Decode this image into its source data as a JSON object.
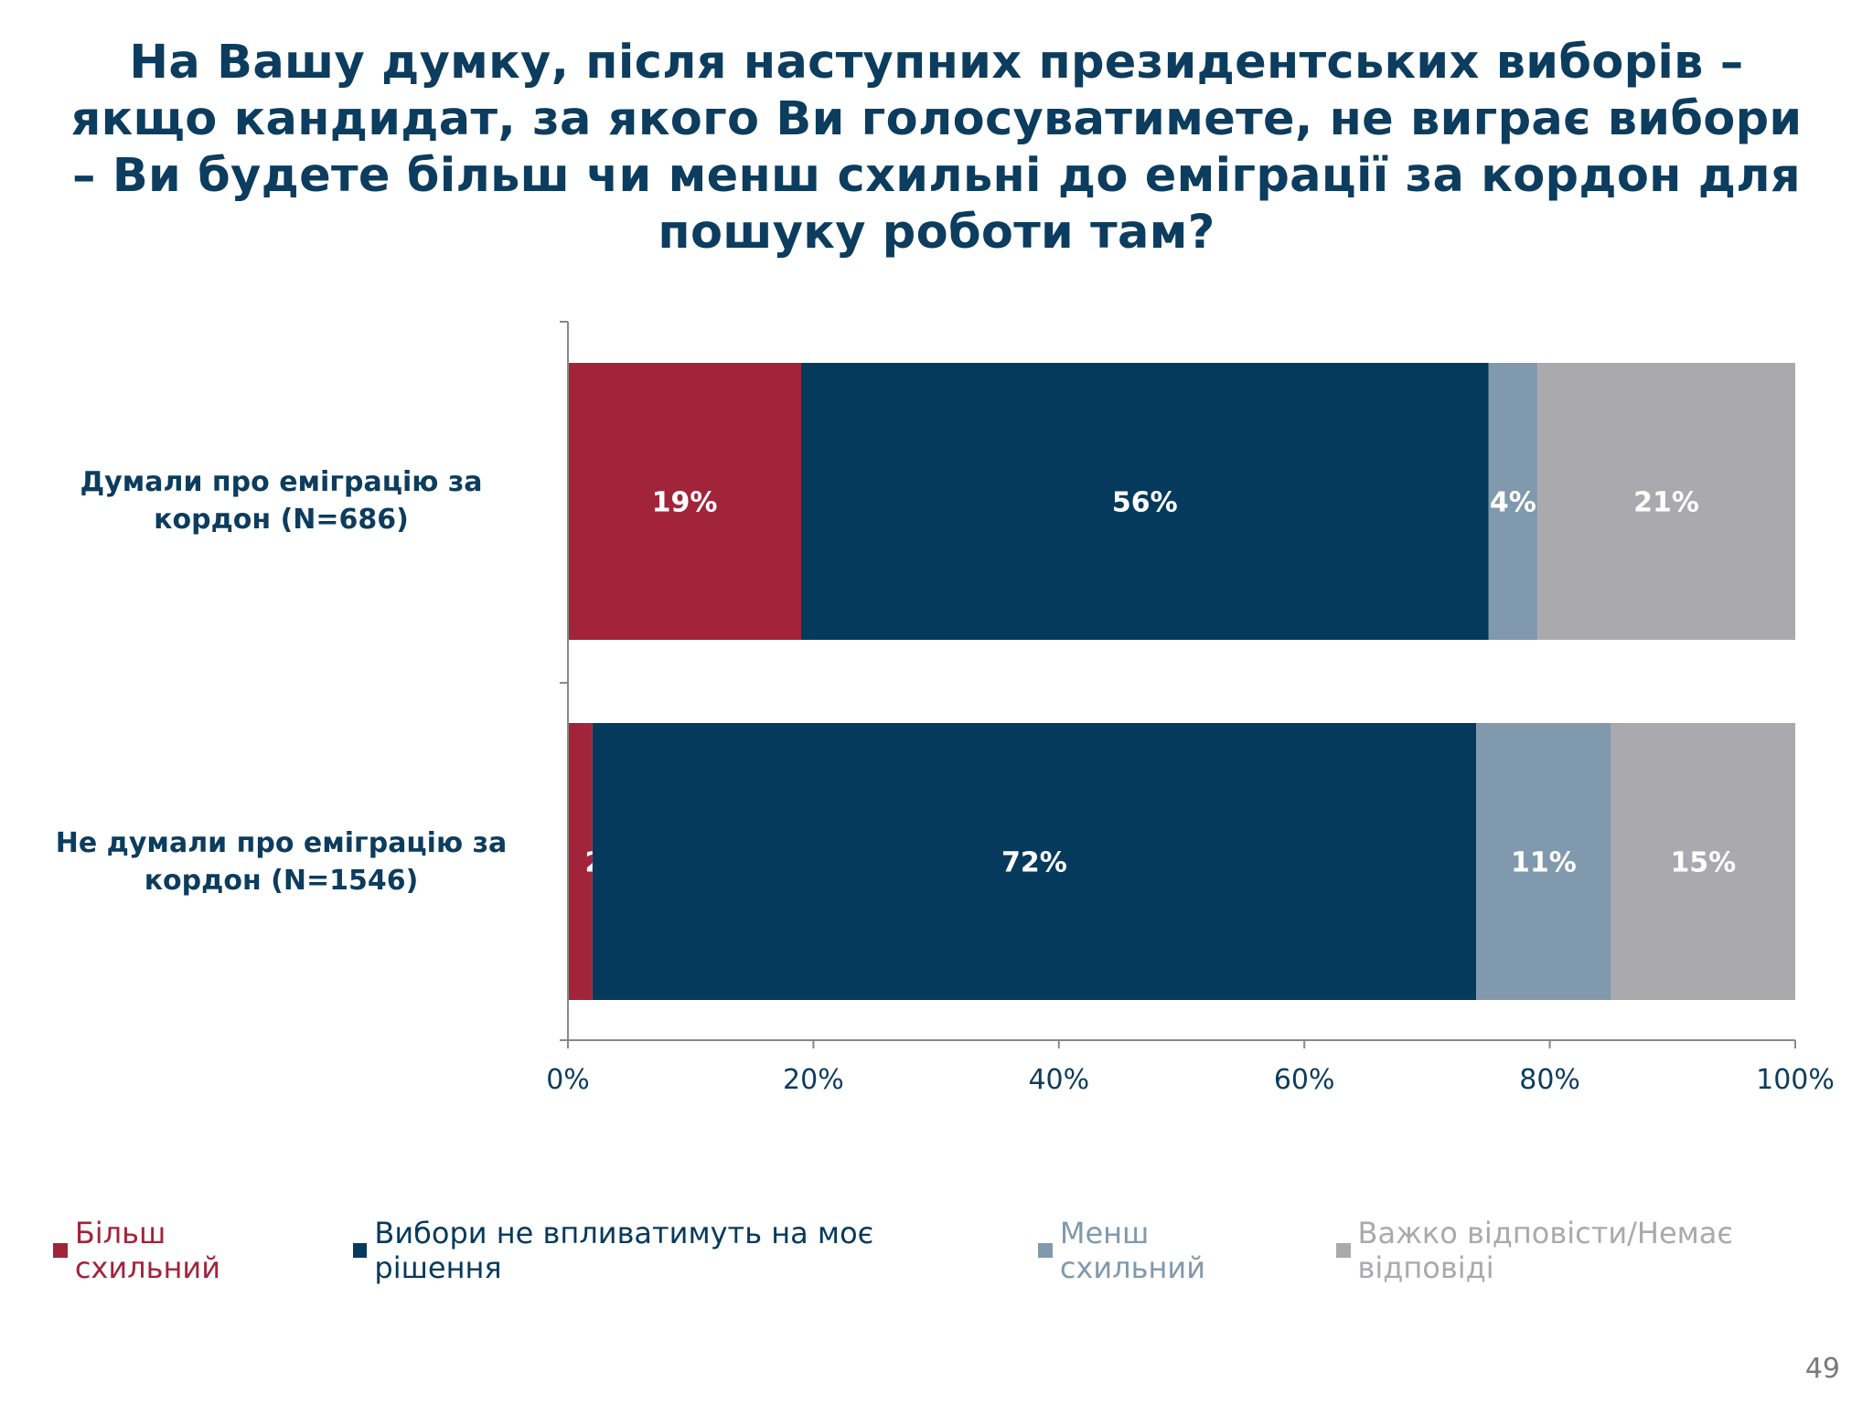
{
  "title": "На Вашу думку, після наступних президентських виборів – якщо кандидат, за якого Ви голосуватимете, не виграє вибори – Ви будете більш чи менш схильні до еміграції за кордон для пошуку роботи там?",
  "page_number": "49",
  "chart_data": {
    "type": "bar",
    "orientation": "horizontal",
    "stacked": true,
    "categories": [
      "Думали про  еміграцію за кордон (N=686)",
      "Не думали про  еміграцію за кордон (N=1546)"
    ],
    "series": [
      {
        "name": "Більш схильний",
        "color": "#a1243b",
        "values": [
          19,
          2
        ],
        "labels": [
          "19%",
          "2%"
        ]
      },
      {
        "name": "Вибори не впливатимуть на моє рішення",
        "color": "#053a5c",
        "values": [
          56,
          72
        ],
        "labels": [
          "56%",
          "72%"
        ]
      },
      {
        "name": "Менш схильний",
        "color": "#8099ad",
        "values": [
          4,
          11
        ],
        "labels": [
          "4%",
          "11%"
        ]
      },
      {
        "name": "Важко відповісти/Немає відповіді",
        "color": "#aaa9ad",
        "values": [
          21,
          15
        ],
        "labels": [
          "21%",
          "15%"
        ]
      }
    ],
    "xlim": [
      0,
      100
    ],
    "ticks": [
      0,
      20,
      40,
      60,
      80,
      100
    ],
    "tick_labels": [
      "0%",
      "20%",
      "40%",
      "60%",
      "80%",
      "100%"
    ],
    "legend_position": "bottom",
    "grid": false
  }
}
